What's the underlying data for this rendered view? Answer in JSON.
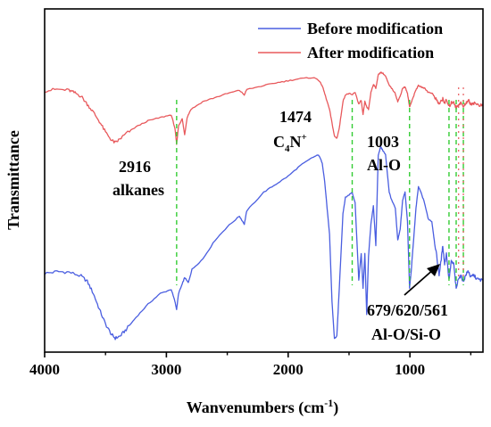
{
  "chart_data": {
    "type": "line",
    "xlabel": "Wanvenumbers (cm",
    "xlabel_sup": "-1",
    "xlabel_close": ")",
    "ylabel": "Transmittance",
    "xlim": [
      4000,
      400
    ],
    "x_reversed": true,
    "ylim": [
      0,
      1
    ],
    "y_ticks_shown": false,
    "x_ticks": [
      4000,
      3000,
      2000,
      1000
    ],
    "x_tick_labels": [
      "4000",
      "3000",
      "2000",
      "1000"
    ],
    "legend_position": "top-right",
    "series": [
      {
        "name": "Before modification",
        "color": "#4a5ee0",
        "points": [
          [
            4000,
            0.255
          ],
          [
            3900,
            0.262
          ],
          [
            3800,
            0.26
          ],
          [
            3700,
            0.245
          ],
          [
            3650,
            0.225
          ],
          [
            3600,
            0.18
          ],
          [
            3550,
            0.12
          ],
          [
            3500,
            0.065
          ],
          [
            3450,
            0.025
          ],
          [
            3420,
            0.012
          ],
          [
            3380,
            0.02
          ],
          [
            3330,
            0.045
          ],
          [
            3250,
            0.09
          ],
          [
            3150,
            0.14
          ],
          [
            3050,
            0.18
          ],
          [
            2960,
            0.195
          ],
          [
            2930,
            0.15
          ],
          [
            2916,
            0.12
          ],
          [
            2900,
            0.18
          ],
          [
            2870,
            0.215
          ],
          [
            2850,
            0.24
          ],
          [
            2820,
            0.22
          ],
          [
            2790,
            0.27
          ],
          [
            2700,
            0.31
          ],
          [
            2600,
            0.38
          ],
          [
            2500,
            0.43
          ],
          [
            2400,
            0.47
          ],
          [
            2360,
            0.44
          ],
          [
            2340,
            0.49
          ],
          [
            2200,
            0.56
          ],
          [
            2100,
            0.59
          ],
          [
            2000,
            0.62
          ],
          [
            1900,
            0.66
          ],
          [
            1800,
            0.69
          ],
          [
            1750,
            0.7
          ],
          [
            1720,
            0.67
          ],
          [
            1700,
            0.6
          ],
          [
            1660,
            0.4
          ],
          [
            1640,
            0.15
          ],
          [
            1620,
            0.01
          ],
          [
            1600,
            0.02
          ],
          [
            1580,
            0.2
          ],
          [
            1550,
            0.48
          ],
          [
            1530,
            0.54
          ],
          [
            1500,
            0.55
          ],
          [
            1474,
            0.56
          ],
          [
            1450,
            0.52
          ],
          [
            1420,
            0.23
          ],
          [
            1400,
            0.33
          ],
          [
            1385,
            0.2
          ],
          [
            1370,
            0.33
          ],
          [
            1355,
            0.1
          ],
          [
            1340,
            0.32
          ],
          [
            1320,
            0.44
          ],
          [
            1300,
            0.51
          ],
          [
            1280,
            0.36
          ],
          [
            1260,
            0.7
          ],
          [
            1240,
            0.73
          ],
          [
            1220,
            0.715
          ],
          [
            1200,
            0.7
          ],
          [
            1170,
            0.56
          ],
          [
            1150,
            0.53
          ],
          [
            1120,
            0.5
          ],
          [
            1100,
            0.38
          ],
          [
            1080,
            0.42
          ],
          [
            1060,
            0.53
          ],
          [
            1040,
            0.56
          ],
          [
            1020,
            0.45
          ],
          [
            1003,
            0.2
          ],
          [
            990,
            0.26
          ],
          [
            970,
            0.38
          ],
          [
            950,
            0.5
          ],
          [
            930,
            0.58
          ],
          [
            910,
            0.56
          ],
          [
            880,
            0.52
          ],
          [
            850,
            0.46
          ],
          [
            820,
            0.45
          ],
          [
            800,
            0.38
          ],
          [
            780,
            0.32
          ],
          [
            760,
            0.25
          ],
          [
            745,
            0.3
          ],
          [
            730,
            0.36
          ],
          [
            715,
            0.29
          ],
          [
            700,
            0.33
          ],
          [
            679,
            0.23
          ],
          [
            660,
            0.3
          ],
          [
            640,
            0.29
          ],
          [
            620,
            0.195
          ],
          [
            600,
            0.24
          ],
          [
            580,
            0.245
          ],
          [
            561,
            0.225
          ],
          [
            540,
            0.25
          ],
          [
            520,
            0.265
          ],
          [
            500,
            0.24
          ],
          [
            480,
            0.25
          ],
          [
            450,
            0.235
          ],
          [
            420,
            0.23
          ],
          [
            400,
            0.232
          ]
        ]
      },
      {
        "name": "After modification",
        "color": "#e8595c",
        "points": [
          [
            4000,
            0.94
          ],
          [
            3900,
            0.946
          ],
          [
            3800,
            0.942
          ],
          [
            3750,
            0.932
          ],
          [
            3700,
            0.92
          ],
          [
            3650,
            0.89
          ],
          [
            3600,
            0.86
          ],
          [
            3550,
            0.825
          ],
          [
            3500,
            0.785
          ],
          [
            3450,
            0.755
          ],
          [
            3420,
            0.745
          ],
          [
            3380,
            0.76
          ],
          [
            3330,
            0.78
          ],
          [
            3250,
            0.805
          ],
          [
            3150,
            0.828
          ],
          [
            3050,
            0.84
          ],
          [
            2960,
            0.85
          ],
          [
            2930,
            0.8
          ],
          [
            2916,
            0.74
          ],
          [
            2900,
            0.81
          ],
          [
            2870,
            0.835
          ],
          [
            2850,
            0.775
          ],
          [
            2830,
            0.84
          ],
          [
            2800,
            0.87
          ],
          [
            2700,
            0.9
          ],
          [
            2600,
            0.915
          ],
          [
            2500,
            0.93
          ],
          [
            2400,
            0.942
          ],
          [
            2360,
            0.925
          ],
          [
            2340,
            0.945
          ],
          [
            2200,
            0.96
          ],
          [
            2100,
            0.97
          ],
          [
            2000,
            0.978
          ],
          [
            1900,
            0.986
          ],
          [
            1800,
            0.99
          ],
          [
            1760,
            0.985
          ],
          [
            1720,
            0.96
          ],
          [
            1700,
            0.93
          ],
          [
            1660,
            0.87
          ],
          [
            1640,
            0.82
          ],
          [
            1620,
            0.77
          ],
          [
            1600,
            0.762
          ],
          [
            1580,
            0.8
          ],
          [
            1550,
            0.9
          ],
          [
            1530,
            0.925
          ],
          [
            1500,
            0.93
          ],
          [
            1474,
            0.925
          ],
          [
            1450,
            0.935
          ],
          [
            1420,
            0.89
          ],
          [
            1400,
            0.905
          ],
          [
            1385,
            0.85
          ],
          [
            1370,
            0.9
          ],
          [
            1355,
            0.88
          ],
          [
            1340,
            0.87
          ],
          [
            1320,
            0.935
          ],
          [
            1300,
            0.965
          ],
          [
            1280,
            0.95
          ],
          [
            1260,
            1.0
          ],
          [
            1240,
            1.01
          ],
          [
            1220,
            1.005
          ],
          [
            1200,
            0.995
          ],
          [
            1170,
            0.96
          ],
          [
            1150,
            0.95
          ],
          [
            1120,
            0.93
          ],
          [
            1100,
            0.9
          ],
          [
            1080,
            0.92
          ],
          [
            1060,
            0.95
          ],
          [
            1040,
            0.955
          ],
          [
            1020,
            0.93
          ],
          [
            1003,
            0.88
          ],
          [
            990,
            0.895
          ],
          [
            970,
            0.92
          ],
          [
            950,
            0.945
          ],
          [
            930,
            0.96
          ],
          [
            910,
            0.955
          ],
          [
            880,
            0.95
          ],
          [
            850,
            0.935
          ],
          [
            820,
            0.932
          ],
          [
            800,
            0.92
          ],
          [
            780,
            0.905
          ],
          [
            760,
            0.89
          ],
          [
            745,
            0.9
          ],
          [
            730,
            0.91
          ],
          [
            715,
            0.895
          ],
          [
            700,
            0.905
          ],
          [
            679,
            0.88
          ],
          [
            660,
            0.895
          ],
          [
            640,
            0.9
          ],
          [
            620,
            0.875
          ],
          [
            600,
            0.89
          ],
          [
            580,
            0.895
          ],
          [
            561,
            0.88
          ],
          [
            540,
            0.895
          ],
          [
            520,
            0.905
          ],
          [
            500,
            0.89
          ],
          [
            480,
            0.895
          ],
          [
            450,
            0.89
          ],
          [
            420,
            0.885
          ],
          [
            400,
            0.887
          ]
        ]
      }
    ],
    "reference_lines": {
      "color": "#33cc33",
      "style": "dashed",
      "x": [
        2916,
        1474,
        1003,
        679,
        620,
        561
      ]
    },
    "red_marker_color": "#e8595c",
    "annotations": [
      {
        "id": "a2916",
        "lines": [
          "2916",
          "alkanes"
        ]
      },
      {
        "id": "a1474",
        "line1": "1474",
        "line2_main": "C",
        "line2_sub": "4",
        "line2_rest": "N",
        "line2_sup": "+"
      },
      {
        "id": "a1003",
        "lines": [
          "1003",
          "Al-O"
        ]
      },
      {
        "id": "a679",
        "lines": [
          "679/620/561",
          "Al-O/Si-O"
        ]
      }
    ]
  }
}
